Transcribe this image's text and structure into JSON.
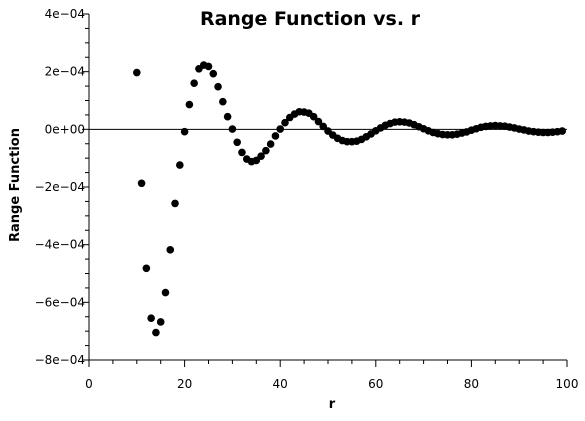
{
  "chart_data": {
    "type": "scatter",
    "title": "Range Function vs. r",
    "xlabel": "r",
    "ylabel": "Range Function",
    "xlim": [
      0,
      100
    ],
    "ylim": [
      -0.0008,
      0.0004
    ],
    "x_ticks": [
      0,
      20,
      40,
      60,
      80,
      100
    ],
    "x_tick_labels": [
      "0",
      "20",
      "40",
      "60",
      "80",
      "100"
    ],
    "y_ticks": [
      -0.0008,
      -0.0006,
      -0.0004,
      -0.0002,
      0,
      0.0002,
      0.0004
    ],
    "y_tick_labels": [
      "−8e−04",
      "−6e−04",
      "−4e−04",
      "−2e−04",
      "0e+00",
      "2e−04",
      "4e−04"
    ],
    "reference_line_y": 0,
    "grid": false,
    "legend": "none",
    "marker_color": "#000000",
    "x": [
      10,
      11,
      12,
      13,
      14,
      15,
      16,
      17,
      18,
      19,
      20,
      21,
      22,
      23,
      24,
      25,
      26,
      27,
      28,
      29,
      30,
      31,
      32,
      33,
      34,
      35,
      36,
      37,
      38,
      39,
      40,
      41,
      42,
      43,
      44,
      45,
      46,
      47,
      48,
      49,
      50,
      51,
      52,
      53,
      54,
      55,
      56,
      57,
      58,
      59,
      60,
      61,
      62,
      63,
      64,
      65,
      66,
      67,
      68,
      69,
      70,
      71,
      72,
      73,
      74,
      75,
      76,
      77,
      78,
      79,
      80,
      81,
      82,
      83,
      84,
      85,
      86,
      87,
      88,
      89,
      90,
      91,
      92,
      93,
      94,
      95,
      96,
      97,
      98,
      99
    ],
    "y": [
      0.000197,
      -0.000187,
      -0.000482,
      -0.000655,
      -0.000705,
      -0.000668,
      -0.000566,
      -0.000418,
      -0.000257,
      -0.000124,
      -8e-06,
      8.6e-05,
      0.00016,
      0.00021,
      0.000223,
      0.000218,
      0.000193,
      0.000148,
      9.6e-05,
      4.4e-05,
      1e-06,
      -4.5e-05,
      -8e-05,
      -0.000103,
      -0.000112,
      -0.000108,
      -9.3e-05,
      -7.4e-05,
      -5.1e-05,
      -2.3e-05,
      1e-06,
      2.3e-05,
      4.1e-05,
      5.3e-05,
      6.1e-05,
      6e-05,
      5.6e-05,
      4.4e-05,
      2.7e-05,
      1e-05,
      -6e-06,
      -2e-05,
      -3.1e-05,
      -3.9e-05,
      -4.3e-05,
      -4.3e-05,
      -4.1e-05,
      -3.5e-05,
      -2.6e-05,
      -1.6e-05,
      -5e-06,
      5e-06,
      1.4e-05,
      2e-05,
      2.5e-05,
      2.6e-05,
      2.5e-05,
      2.2e-05,
      1.6e-05,
      9e-06,
      2e-06,
      -5e-06,
      -1.1e-05,
      -1.5e-05,
      -1.8e-05,
      -1.9e-05,
      -1.9e-05,
      -1.7e-05,
      -1.3e-05,
      -9e-06,
      -3e-06,
      2e-06,
      7e-06,
      1e-05,
      1.2e-05,
      1.3e-05,
      1.2e-05,
      1.1e-05,
      8e-06,
      5e-06,
      1e-06,
      -2e-06,
      -6e-06,
      -8e-06,
      -1e-05,
      -1.1e-05,
      -1.1e-05,
      -1e-05,
      -8e-06,
      -6e-06
    ]
  }
}
